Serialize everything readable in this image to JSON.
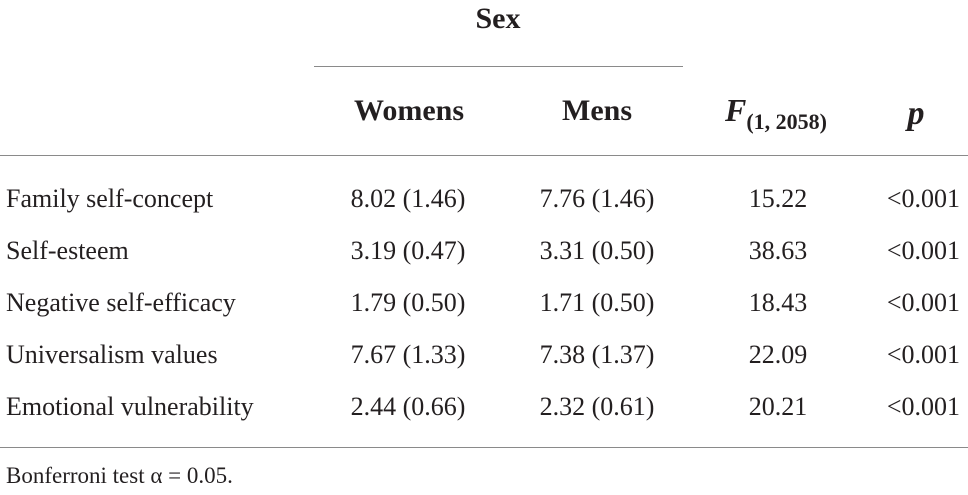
{
  "table": {
    "group_header": "Sex",
    "columns": {
      "women": "Womens",
      "men": "Mens",
      "f_symbol": "F",
      "f_df": "(1, 2058)",
      "p": "p"
    },
    "rows": [
      {
        "label": "Family self-concept",
        "women": "8.02 (1.46)",
        "men": "7.76 (1.46)",
        "f": "15.22",
        "p": "<0.001"
      },
      {
        "label": "Self-esteem",
        "women": "3.19 (0.47)",
        "men": "3.31 (0.50)",
        "f": "38.63",
        "p": "<0.001"
      },
      {
        "label": "Negative self-efficacy",
        "women": "1.79 (0.50)",
        "men": "1.71 (0.50)",
        "f": "18.43",
        "p": "<0.001"
      },
      {
        "label": "Universalism values",
        "women": "7.67 (1.33)",
        "men": "7.38 (1.37)",
        "f": "22.09",
        "p": "<0.001"
      },
      {
        "label": "Emotional vulnerability",
        "women": "2.44 (0.66)",
        "men": "2.32 (0.61)",
        "f": "20.21",
        "p": "<0.001"
      }
    ],
    "footnote": "Bonferroni test α  = 0.05."
  }
}
